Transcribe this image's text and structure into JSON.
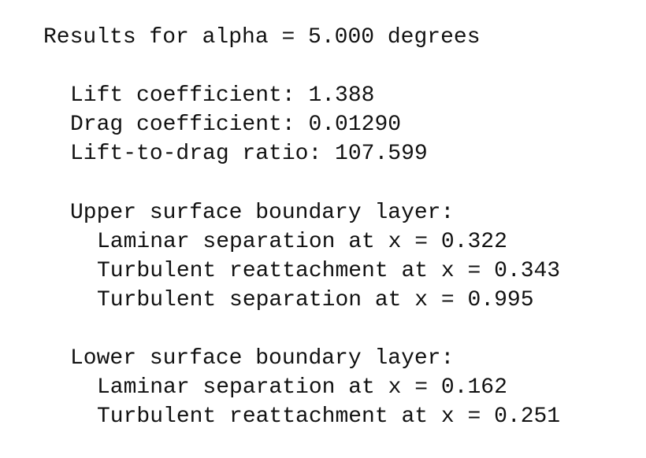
{
  "results": {
    "header": "Results for alpha = 5.000 degrees",
    "coefficients": {
      "lift": "Lift coefficient: 1.388",
      "drag": "Drag coefficient: 0.01290",
      "ratio": "Lift-to-drag ratio: 107.599"
    },
    "upper_surface": {
      "title": "Upper surface boundary layer:",
      "laminar_separation": "Laminar separation at x = 0.322",
      "turbulent_reattachment": "Turbulent reattachment at x = 0.343",
      "turbulent_separation": "Turbulent separation at x = 0.995"
    },
    "lower_surface": {
      "title": "Lower surface boundary layer:",
      "laminar_separation": "Laminar separation at x = 0.162",
      "turbulent_reattachment": "Turbulent reattachment at x = 0.251"
    }
  }
}
